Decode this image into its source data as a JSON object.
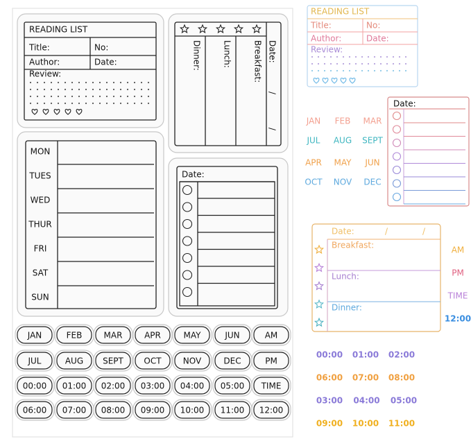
{
  "sheet": {
    "reading_list": {
      "title": "READING LIST",
      "fields": [
        "Title:",
        "No:",
        "Author:",
        "Date:"
      ],
      "review": "Review:"
    },
    "meal_planner": {
      "meals": [
        "Dinner:",
        "Lunch:",
        "Breakfast:"
      ],
      "date": "Date:",
      "separators": [
        "/",
        "/"
      ]
    },
    "week": {
      "days": [
        "MON",
        "TUES",
        "WED",
        "THUR",
        "FRI",
        "SAT",
        "SUN"
      ]
    },
    "checklist": {
      "date": "Date:"
    },
    "tags": [
      [
        "JAN",
        "FEB",
        "MAR",
        "APR",
        "MAY",
        "JUN",
        "AM"
      ],
      [
        "JUL",
        "AUG",
        "SEPT",
        "OCT",
        "NOV",
        "DEC",
        "PM"
      ],
      [
        "00:00",
        "01:00",
        "02:00",
        "03:00",
        "04:00",
        "05:00",
        "TIME"
      ],
      [
        "06:00",
        "07:00",
        "08:00",
        "09:00",
        "10:00",
        "11:00",
        "12:00"
      ]
    ]
  },
  "samples": {
    "reading_list": {
      "title": "READING LIST",
      "fields": [
        "Title:",
        "No:",
        "Author:",
        "Date:"
      ],
      "review": "Review:"
    },
    "months": [
      [
        "JAN",
        "FEB",
        "MAR"
      ],
      [
        "JUL",
        "AUG",
        "SEPT"
      ],
      [
        "APR",
        "MAY",
        "JUN"
      ],
      [
        "OCT",
        "NOV",
        "DEC"
      ]
    ],
    "checklist": {
      "date": "Date:"
    },
    "meal_card": {
      "date": "Date:",
      "separators": [
        "/",
        "/"
      ],
      "meals": [
        "Breakfast:",
        "Lunch:",
        "Dinner:"
      ]
    },
    "labels": [
      "AM",
      "PM",
      "TIME",
      "12:00"
    ],
    "times": [
      [
        "00:00",
        "01:00",
        "02:00"
      ],
      [
        "06:00",
        "07:00",
        "08:00"
      ],
      [
        "03:00",
        "04:00",
        "05:00"
      ],
      [
        "09:00",
        "10:00",
        "11:00"
      ]
    ]
  }
}
